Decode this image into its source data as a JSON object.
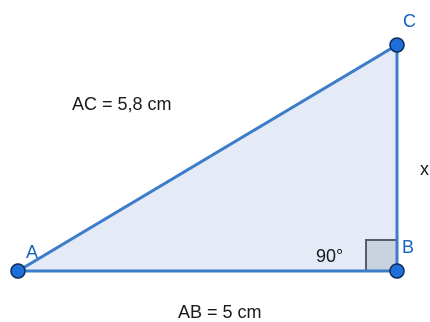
{
  "triangle": {
    "vertices": {
      "A": "A",
      "B": "B",
      "C": "C"
    },
    "side_labels": {
      "ac": "AC = 5,8 cm",
      "ab": "AB = 5 cm",
      "bc": "x"
    },
    "angle_b": "90°",
    "colors": {
      "edge": "#3d7cc9",
      "fill": "#e4ebf6",
      "point": "#1e6fd9",
      "point_outline": "#0d2d5a",
      "right_angle_fill": "#c9d2df",
      "right_angle_stroke": "#555f6b"
    }
  }
}
